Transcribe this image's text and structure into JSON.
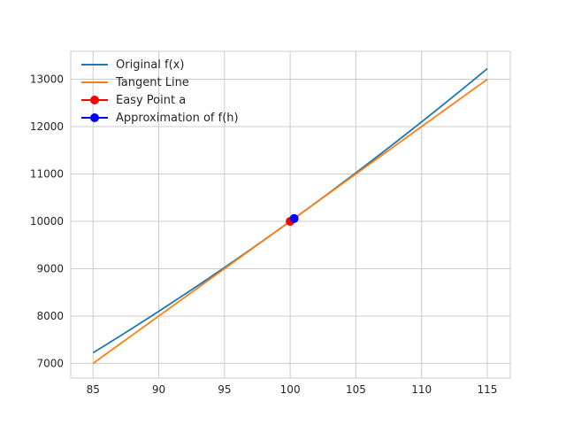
{
  "colors": {
    "background": "#ffffff",
    "grid": "#cccccc",
    "spine": "#cccccc",
    "text": "#262626"
  },
  "chart_data": {
    "type": "line",
    "title": "",
    "xlabel": "",
    "ylabel": "",
    "grid": true,
    "legend_position": "upper-left",
    "xlim": [
      83.3,
      116.75
    ],
    "ylim": [
      6690,
      13590
    ],
    "xticks": [
      85,
      90,
      95,
      100,
      105,
      110,
      115
    ],
    "yticks": [
      7000,
      8000,
      9000,
      10000,
      11000,
      12000,
      13000
    ],
    "x": [
      85,
      86,
      87,
      88,
      89,
      90,
      91,
      92,
      93,
      94,
      95,
      96,
      97,
      98,
      99,
      100,
      101,
      102,
      103,
      104,
      105,
      106,
      107,
      108,
      109,
      110,
      111,
      112,
      113,
      114,
      115
    ],
    "series": [
      {
        "name": "Original f(x)",
        "color": "#1f77b4",
        "values": [
          7225,
          7396,
          7569,
          7744,
          7921,
          8100,
          8281,
          8464,
          8649,
          8836,
          9025,
          9216,
          9409,
          9604,
          9801,
          10000,
          10201,
          10404,
          10609,
          10816,
          11025,
          11236,
          11449,
          11664,
          11881,
          12100,
          12321,
          12544,
          12769,
          12996,
          13225
        ]
      },
      {
        "name": "Tangent Line",
        "color": "#ff7f0e",
        "values": [
          7000,
          7200,
          7400,
          7600,
          7800,
          8000,
          8200,
          8400,
          8600,
          8800,
          9000,
          9200,
          9400,
          9600,
          9800,
          10000,
          10200,
          10400,
          10600,
          10800,
          11000,
          11200,
          11400,
          11600,
          11800,
          12000,
          12200,
          12400,
          12600,
          12800,
          13000
        ]
      }
    ],
    "points": [
      {
        "name": "Easy Point a",
        "color": "#ff0000",
        "x": 100,
        "y": 10000
      },
      {
        "name": "Approximation of f(h)",
        "color": "#0000ff",
        "x": 100.3,
        "y": 10060
      }
    ],
    "legend": [
      {
        "label": "Original f(x)",
        "color": "#1f77b4",
        "marker": false
      },
      {
        "label": "Tangent Line",
        "color": "#ff7f0e",
        "marker": false
      },
      {
        "label": "Easy Point a",
        "color": "#ff0000",
        "marker": true
      },
      {
        "label": "Approximation of f(h)",
        "color": "#0000ff",
        "marker": true
      }
    ]
  }
}
